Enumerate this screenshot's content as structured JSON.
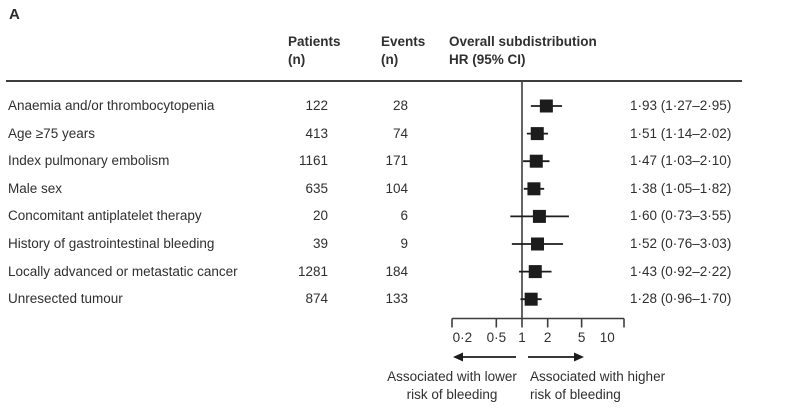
{
  "figure": {
    "panel_label": "A",
    "header": {
      "patients": "Patients\n(n)",
      "events": "Events\n(n)",
      "effect": "Overall subdistribution\nHR (95% CI)"
    },
    "footer": {
      "left_arrow_label": "Associated with lower\nrisk of bleeding",
      "right_arrow_label": "Associated with higher\nrisk of bleeding"
    },
    "colors": {
      "text": "#2f2f2f",
      "line": "#3d3d3d",
      "marker": "#1c1c1c"
    }
  },
  "chart_data": {
    "type": "forest",
    "x_scale": "log10",
    "x_ticks": [
      0.2,
      0.5,
      1,
      2,
      5,
      10
    ],
    "x_tick_labels": [
      "0·2",
      "0·5",
      "1",
      "2",
      "5",
      "10"
    ],
    "reference_line": 1,
    "columns": [
      "Patients (n)",
      "Events (n)",
      "Overall subdistribution HR (95% CI)"
    ],
    "rows": [
      {
        "label": "Anaemia and/or thrombocytopenia",
        "patients": 122,
        "events": 28,
        "hr": 1.93,
        "ci_low": 1.27,
        "ci_high": 2.95,
        "hr_text": "1·93 (1·27–2·95)"
      },
      {
        "label": "Age ≥75 years",
        "patients": 413,
        "events": 74,
        "hr": 1.51,
        "ci_low": 1.14,
        "ci_high": 2.02,
        "hr_text": "1·51 (1·14–2·02)"
      },
      {
        "label": "Index pulmonary embolism",
        "patients": 1161,
        "events": 171,
        "hr": 1.47,
        "ci_low": 1.03,
        "ci_high": 2.1,
        "hr_text": "1·47 (1·03–2·10)"
      },
      {
        "label": "Male sex",
        "patients": 635,
        "events": 104,
        "hr": 1.38,
        "ci_low": 1.05,
        "ci_high": 1.82,
        "hr_text": "1·38 (1·05–1·82)"
      },
      {
        "label": "Concomitant antiplatelet therapy",
        "patients": 20,
        "events": 6,
        "hr": 1.6,
        "ci_low": 0.73,
        "ci_high": 3.55,
        "hr_text": "1·60 (0·73–3·55)"
      },
      {
        "label": "History of gastrointestinal bleeding",
        "patients": 39,
        "events": 9,
        "hr": 1.52,
        "ci_low": 0.76,
        "ci_high": 3.03,
        "hr_text": "1·52 (0·76–3·03)"
      },
      {
        "label": "Locally advanced or metastatic cancer",
        "patients": 1281,
        "events": 184,
        "hr": 1.43,
        "ci_low": 0.92,
        "ci_high": 2.22,
        "hr_text": "1·43 (0·92–2·22)"
      },
      {
        "label": "Unresected tumour",
        "patients": 874,
        "events": 133,
        "hr": 1.28,
        "ci_low": 0.96,
        "ci_high": 1.7,
        "hr_text": "1·28 (0·96–1·70)"
      }
    ]
  }
}
